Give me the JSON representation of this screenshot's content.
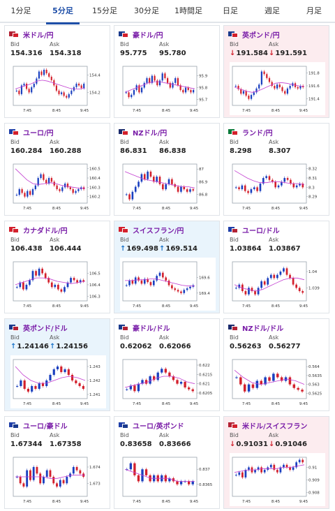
{
  "tabs": [
    {
      "label": "1分足",
      "active": false
    },
    {
      "label": "5分足",
      "active": true
    },
    {
      "label": "15分足",
      "active": false
    },
    {
      "label": "30分足",
      "active": false
    },
    {
      "label": "1時間足",
      "active": false
    },
    {
      "label": "日足",
      "active": false
    },
    {
      "label": "週足",
      "active": false
    },
    {
      "label": "月足",
      "active": false
    }
  ],
  "labels": {
    "bid": "Bid",
    "ask": "Ask"
  },
  "colors": {
    "accent": "#1f4fa8",
    "pair": "#7a1ea8",
    "up_candle": "#1a3fbf",
    "down_candle": "#d3202c",
    "ma_line": "#c23cd0",
    "up_arrow": "#1a73c9",
    "down_arrow": "#d0202c"
  },
  "pairs": [
    {
      "name": "米ドル/円",
      "flag_icon": "us-jp-flag-icon",
      "flag_colors": [
        "#b22234",
        "#ffffff"
      ],
      "bid": "154.316",
      "ask": "154.318",
      "trend": "none",
      "chart_data": {
        "type": "candlestick",
        "x_ticks": [
          "7:45",
          "8:45",
          "9:45"
        ],
        "y_ticks": [
          "154.4",
          "154.2"
        ],
        "ylim": [
          154.05,
          154.5
        ],
        "values": [
          154.22,
          154.18,
          154.28,
          154.3,
          154.24,
          154.2,
          154.26,
          154.3,
          154.36,
          154.44,
          154.4,
          154.46,
          154.42,
          154.38,
          154.34,
          154.28,
          154.22,
          154.18,
          154.2,
          154.16,
          154.14,
          154.18,
          154.22,
          154.26,
          154.3,
          154.28,
          154.25,
          154.3
        ],
        "ma": [
          154.24,
          154.26,
          154.28,
          154.3,
          154.33,
          154.34,
          154.33,
          154.31,
          154.29,
          154.27,
          154.25,
          154.24,
          154.24,
          154.25
        ]
      }
    },
    {
      "name": "豪ドル/円",
      "flag_icon": "au-jp-flag-icon",
      "flag_colors": [
        "#1a3a8c",
        "#ffffff"
      ],
      "bid": "95.775",
      "ask": "95.780",
      "trend": "none",
      "chart_data": {
        "type": "candlestick",
        "x_ticks": [
          "7:45",
          "8:45",
          "9:45"
        ],
        "y_ticks": [
          "95.9",
          "95.8",
          "95.7"
        ],
        "ylim": [
          95.65,
          95.98
        ],
        "values": [
          95.76,
          95.72,
          95.74,
          95.78,
          95.82,
          95.76,
          95.8,
          95.84,
          95.88,
          95.84,
          95.9,
          95.86,
          95.82,
          95.86,
          95.92,
          95.88,
          95.84,
          95.8,
          95.84,
          95.88,
          95.82,
          95.78,
          95.76,
          95.8,
          95.78,
          95.76,
          95.78
        ],
        "ma": [
          95.76,
          95.78,
          95.8,
          95.82,
          95.84,
          95.85,
          95.85,
          95.84,
          95.83,
          95.82,
          95.81,
          95.8,
          95.79
        ]
      }
    },
    {
      "name": "英ポンド/円",
      "flag_icon": "gb-jp-flag-icon",
      "flag_colors": [
        "#1a3a8c",
        "#d3202c"
      ],
      "bid": "191.584",
      "ask": "191.591",
      "trend": "down",
      "chart_data": {
        "type": "candlestick",
        "x_ticks": [
          "7:45",
          "8:45",
          "9:45"
        ],
        "y_ticks": [
          "191.8",
          "191.6",
          "191.4"
        ],
        "ylim": [
          191.3,
          191.9
        ],
        "values": [
          191.6,
          191.55,
          191.48,
          191.52,
          191.45,
          191.4,
          191.46,
          191.5,
          191.56,
          191.62,
          191.82,
          191.78,
          191.72,
          191.66,
          191.6,
          191.56,
          191.62,
          191.58,
          191.52,
          191.48,
          191.56,
          191.6,
          191.64,
          191.58,
          191.56,
          191.6,
          191.58
        ],
        "ma": [
          191.58,
          191.55,
          191.52,
          191.5,
          191.52,
          191.56,
          191.6,
          191.64,
          191.65,
          191.64,
          191.62,
          191.6,
          191.59
        ]
      }
    },
    {
      "name": "ユーロ/円",
      "flag_icon": "eu-jp-flag-icon",
      "flag_colors": [
        "#1f3fa8",
        "#ffffff"
      ],
      "bid": "160.284",
      "ask": "160.288",
      "trend": "none",
      "chart_data": {
        "type": "candlestick",
        "x_ticks": [
          "7:45",
          "8:45",
          "9:45"
        ],
        "y_ticks": [
          "160.5",
          "160.4",
          "160.3",
          "160.2"
        ],
        "ylim": [
          160.13,
          160.55
        ],
        "values": [
          160.22,
          160.28,
          160.24,
          160.2,
          160.26,
          160.22,
          160.28,
          160.32,
          160.4,
          160.44,
          160.38,
          160.34,
          160.4,
          160.36,
          160.32,
          160.28,
          160.26,
          160.3,
          160.34,
          160.3,
          160.28,
          160.24,
          160.26,
          160.28,
          160.3,
          160.28
        ],
        "ma": [
          160.5,
          160.44,
          160.38,
          160.34,
          160.33,
          160.34,
          160.35,
          160.34,
          160.32,
          160.31,
          160.3,
          160.29,
          160.29
        ]
      }
    },
    {
      "name": "NZドル/円",
      "flag_icon": "nz-jp-flag-icon",
      "flag_colors": [
        "#1a2a6c",
        "#ffffff"
      ],
      "bid": "86.831",
      "ask": "86.838",
      "trend": "none",
      "chart_data": {
        "type": "candlestick",
        "x_ticks": [
          "7:45",
          "8:45",
          "9:45"
        ],
        "y_ticks": [
          "87",
          "86.9",
          "86.8"
        ],
        "ylim": [
          86.73,
          87.04
        ],
        "values": [
          86.8,
          86.76,
          86.82,
          86.86,
          86.9,
          86.96,
          86.92,
          86.98,
          86.94,
          86.9,
          86.94,
          86.88,
          86.84,
          86.88,
          86.92,
          86.88,
          86.86,
          86.82,
          86.86,
          86.84,
          86.82,
          86.84,
          86.83
        ],
        "ma": [
          86.98,
          86.96,
          86.94,
          86.92,
          86.91,
          86.9,
          86.89,
          86.88,
          86.87,
          86.86,
          86.86,
          86.85
        ]
      }
    },
    {
      "name": "ランド/円",
      "flag_icon": "za-jp-flag-icon",
      "flag_colors": [
        "#0a7a3a",
        "#ffffff"
      ],
      "bid": "8.298",
      "ask": "8.307",
      "trend": "none",
      "chart_data": {
        "type": "candlestick",
        "x_ticks": [
          "7:45",
          "8:45",
          "9:45"
        ],
        "y_ticks": [
          "8.32",
          "8.31",
          "8.3",
          "8.29"
        ],
        "ylim": [
          8.283,
          8.325
        ],
        "values": [
          8.3,
          8.298,
          8.302,
          8.296,
          8.294,
          8.298,
          8.3,
          8.296,
          8.304,
          8.31,
          8.312,
          8.308,
          8.306,
          8.3,
          8.302,
          8.306,
          8.31,
          8.308,
          8.304,
          8.3,
          8.302,
          8.304,
          8.3
        ],
        "ma": [
          8.318,
          8.314,
          8.31,
          8.307,
          8.305,
          8.305,
          8.306,
          8.306,
          8.305,
          8.304,
          8.304,
          8.303
        ]
      }
    },
    {
      "name": "カナダドル/円",
      "flag_icon": "ca-jp-flag-icon",
      "flag_colors": [
        "#d3202c",
        "#ffffff"
      ],
      "bid": "106.438",
      "ask": "106.444",
      "trend": "none",
      "chart_data": {
        "type": "candlestick",
        "x_ticks": [
          "7:45",
          "8:45",
          "9:45"
        ],
        "y_ticks": [
          "106.5",
          "106.4",
          "106.3"
        ],
        "ylim": [
          106.26,
          106.6
        ],
        "values": [
          106.38,
          106.42,
          106.36,
          106.4,
          106.44,
          106.52,
          106.48,
          106.54,
          106.5,
          106.46,
          106.42,
          106.38,
          106.4,
          106.36,
          106.34,
          106.38,
          106.42,
          106.46,
          106.44,
          106.42,
          106.44,
          106.43
        ],
        "ma": [
          106.4,
          106.42,
          106.44,
          106.46,
          106.46,
          106.45,
          106.43,
          106.42,
          106.41,
          106.42,
          106.43
        ]
      }
    },
    {
      "name": "スイスフラン/円",
      "flag_icon": "ch-jp-flag-icon",
      "flag_colors": [
        "#d3202c",
        "#ffffff"
      ],
      "bid": "169.498",
      "ask": "169.514",
      "trend": "up",
      "chart_data": {
        "type": "candlestick",
        "x_ticks": [
          "7:45",
          "8:45",
          "9:45"
        ],
        "y_ticks": [
          "169.6",
          "169.4"
        ],
        "ylim": [
          169.3,
          169.8
        ],
        "values": [
          169.5,
          169.56,
          169.52,
          169.6,
          169.56,
          169.52,
          169.58,
          169.54,
          169.5,
          169.56,
          169.62,
          169.66,
          169.6,
          169.56,
          169.5,
          169.46,
          169.44,
          169.42,
          169.4,
          169.44,
          169.46,
          169.48,
          169.5
        ],
        "ma": [
          169.56,
          169.56,
          169.57,
          169.57,
          169.58,
          169.58,
          169.56,
          169.54,
          169.52,
          169.5,
          169.49,
          169.49
        ]
      }
    },
    {
      "name": "ユーロ/ドル",
      "flag_icon": "eu-us-flag-icon",
      "flag_colors": [
        "#1f3fa8",
        "#b22234"
      ],
      "bid": "1.03864",
      "ask": "1.03867",
      "trend": "none",
      "chart_data": {
        "type": "candlestick",
        "x_ticks": [
          "7:45",
          "8:45",
          "9:45"
        ],
        "y_ticks": [
          "1.04",
          "1.039"
        ],
        "ylim": [
          1.0382,
          1.0406
        ],
        "values": [
          1.039,
          1.0392,
          1.0388,
          1.0386,
          1.039,
          1.0388,
          1.0386,
          1.039,
          1.0394,
          1.0392,
          1.0396,
          1.0398,
          1.0396,
          1.0398,
          1.04,
          1.0402,
          1.0398,
          1.0396,
          1.0392,
          1.039,
          1.0388,
          1.0387
        ],
        "ma": [
          1.0392,
          1.039,
          1.0389,
          1.0388,
          1.0389,
          1.0391,
          1.0393,
          1.0395,
          1.0396,
          1.0396,
          1.0395
        ]
      }
    },
    {
      "name": "英ポンド/ドル",
      "flag_icon": "gb-us-flag-icon",
      "flag_colors": [
        "#1a3a8c",
        "#b22234"
      ],
      "bid": "1.24146",
      "ask": "1.24156",
      "trend": "up",
      "chart_data": {
        "type": "candlestick",
        "x_ticks": [
          "7:45",
          "8:45",
          "9:45"
        ],
        "y_ticks": [
          "1.243",
          "1.242",
          "1.241"
        ],
        "ylim": [
          1.2407,
          1.2435
        ],
        "values": [
          1.2416,
          1.242,
          1.2414,
          1.2412,
          1.2416,
          1.2414,
          1.2418,
          1.2416,
          1.242,
          1.2424,
          1.2428,
          1.243,
          1.2426,
          1.2428,
          1.2424,
          1.242,
          1.2418,
          1.2416,
          1.2414
        ],
        "ma": [
          1.243,
          1.2424,
          1.242,
          1.2418,
          1.2418,
          1.242,
          1.2422,
          1.2423,
          1.2422,
          1.242
        ]
      }
    },
    {
      "name": "豪ドル/ドル",
      "flag_icon": "au-us-flag-icon",
      "flag_colors": [
        "#1a3a8c",
        "#b22234"
      ],
      "bid": "0.62062",
      "ask": "0.62066",
      "trend": "none",
      "chart_data": {
        "type": "candlestick",
        "x_ticks": [
          "7:45",
          "8:45",
          "9:45"
        ],
        "y_ticks": [
          "0.622",
          "0.6215",
          "0.621",
          "0.6205"
        ],
        "ylim": [
          0.6202,
          0.6223
        ],
        "values": [
          0.6207,
          0.6209,
          0.6206,
          0.621,
          0.6212,
          0.621,
          0.6214,
          0.6212,
          0.6216,
          0.6218,
          0.6216,
          0.6214,
          0.6212,
          0.621,
          0.6211,
          0.6208,
          0.6207,
          0.6206
        ],
        "ma": [
          0.6208,
          0.6209,
          0.621,
          0.6211,
          0.6213,
          0.6214,
          0.6214,
          0.6213,
          0.6211,
          0.621
        ]
      }
    },
    {
      "name": "NZドル/ドル",
      "flag_icon": "nz-us-flag-icon",
      "flag_colors": [
        "#1a2a6c",
        "#b22234"
      ],
      "bid": "0.56263",
      "ask": "0.56277",
      "trend": "none",
      "chart_data": {
        "type": "candlestick",
        "x_ticks": [
          "7:45",
          "8:45",
          "9:45"
        ],
        "y_ticks": [
          "0.564",
          "0.5635",
          "0.563",
          "0.5625"
        ],
        "ylim": [
          0.5622,
          0.5644
        ],
        "values": [
          0.5634,
          0.563,
          0.5626,
          0.563,
          0.5628,
          0.5632,
          0.563,
          0.5634,
          0.5632,
          0.5636,
          0.5634,
          0.5632,
          0.5634,
          0.563,
          0.5628,
          0.5627,
          0.5626
        ],
        "ma": [
          0.5638,
          0.5634,
          0.5631,
          0.563,
          0.5631,
          0.5632,
          0.5633,
          0.5632,
          0.563
        ]
      }
    },
    {
      "name": "ユーロ/豪ドル",
      "flag_icon": "eu-au-flag-icon",
      "flag_colors": [
        "#1f3fa8",
        "#1a3a8c"
      ],
      "bid": "1.67344",
      "ask": "1.67358",
      "trend": "none",
      "chart_data": {
        "type": "candlestick",
        "x_ticks": [
          "7:45",
          "8:45",
          "9:45"
        ],
        "y_ticks": [
          "1.674",
          "1.673"
        ],
        "ylim": [
          1.6722,
          1.6746
        ],
        "values": [
          1.6734,
          1.673,
          1.6728,
          1.6738,
          1.6732,
          1.674,
          1.6736,
          1.673,
          1.6734,
          1.6738,
          1.6734,
          1.673,
          1.6728,
          1.6732,
          1.673,
          1.6734,
          1.6736,
          1.674,
          1.6738,
          1.6736,
          1.6734
        ],
        "ma": [
          1.6734,
          1.6734,
          1.6734,
          1.6734,
          1.6734,
          1.6733,
          1.6733,
          1.6734,
          1.6735,
          1.6735,
          1.6735
        ]
      }
    },
    {
      "name": "ユーロ/英ポンド",
      "flag_icon": "eu-gb-flag-icon",
      "flag_colors": [
        "#1f3fa8",
        "#1a3a8c"
      ],
      "bid": "0.83658",
      "ask": "0.83666",
      "trend": "none",
      "chart_data": {
        "type": "candlestick",
        "x_ticks": [
          "7:45",
          "8:45",
          "9:45"
        ],
        "y_ticks": [
          "0.837",
          "0.8365"
        ],
        "ylim": [
          0.8361,
          0.8374
        ],
        "values": [
          0.837,
          0.8372,
          0.8368,
          0.8366,
          0.837,
          0.8368,
          0.8366,
          0.8368,
          0.8366,
          0.8368,
          0.8366,
          0.8367,
          0.8366,
          0.8365,
          0.8366,
          0.8366,
          0.8365,
          0.8366
        ],
        "ma": [
          0.837,
          0.8369,
          0.8368,
          0.8367,
          0.8367,
          0.8367,
          0.8366,
          0.8366,
          0.8366
        ]
      }
    },
    {
      "name": "米ドル/スイスフラン",
      "flag_icon": "us-ch-flag-icon",
      "flag_colors": [
        "#b22234",
        "#d3202c"
      ],
      "bid": "0.91031",
      "ask": "0.91046",
      "trend": "down",
      "chart_data": {
        "type": "candlestick",
        "x_ticks": [
          "7:45",
          "8:45",
          "9:45"
        ],
        "y_ticks": [
          "0.91",
          "0.909",
          "0.908"
        ],
        "ylim": [
          0.9077,
          0.9108
        ],
        "values": [
          0.9094,
          0.9096,
          0.9092,
          0.9098,
          0.91,
          0.9096,
          0.9098,
          0.91,
          0.9096,
          0.9098,
          0.91,
          0.9102,
          0.9098,
          0.9096,
          0.91,
          0.9102,
          0.91,
          0.9098,
          0.91,
          0.9104,
          0.9106,
          0.9104
        ],
        "ma": [
          0.9096,
          0.9097,
          0.9098,
          0.9098,
          0.9099,
          0.9099,
          0.9099,
          0.91,
          0.91,
          0.9101,
          0.9102
        ]
      }
    }
  ]
}
